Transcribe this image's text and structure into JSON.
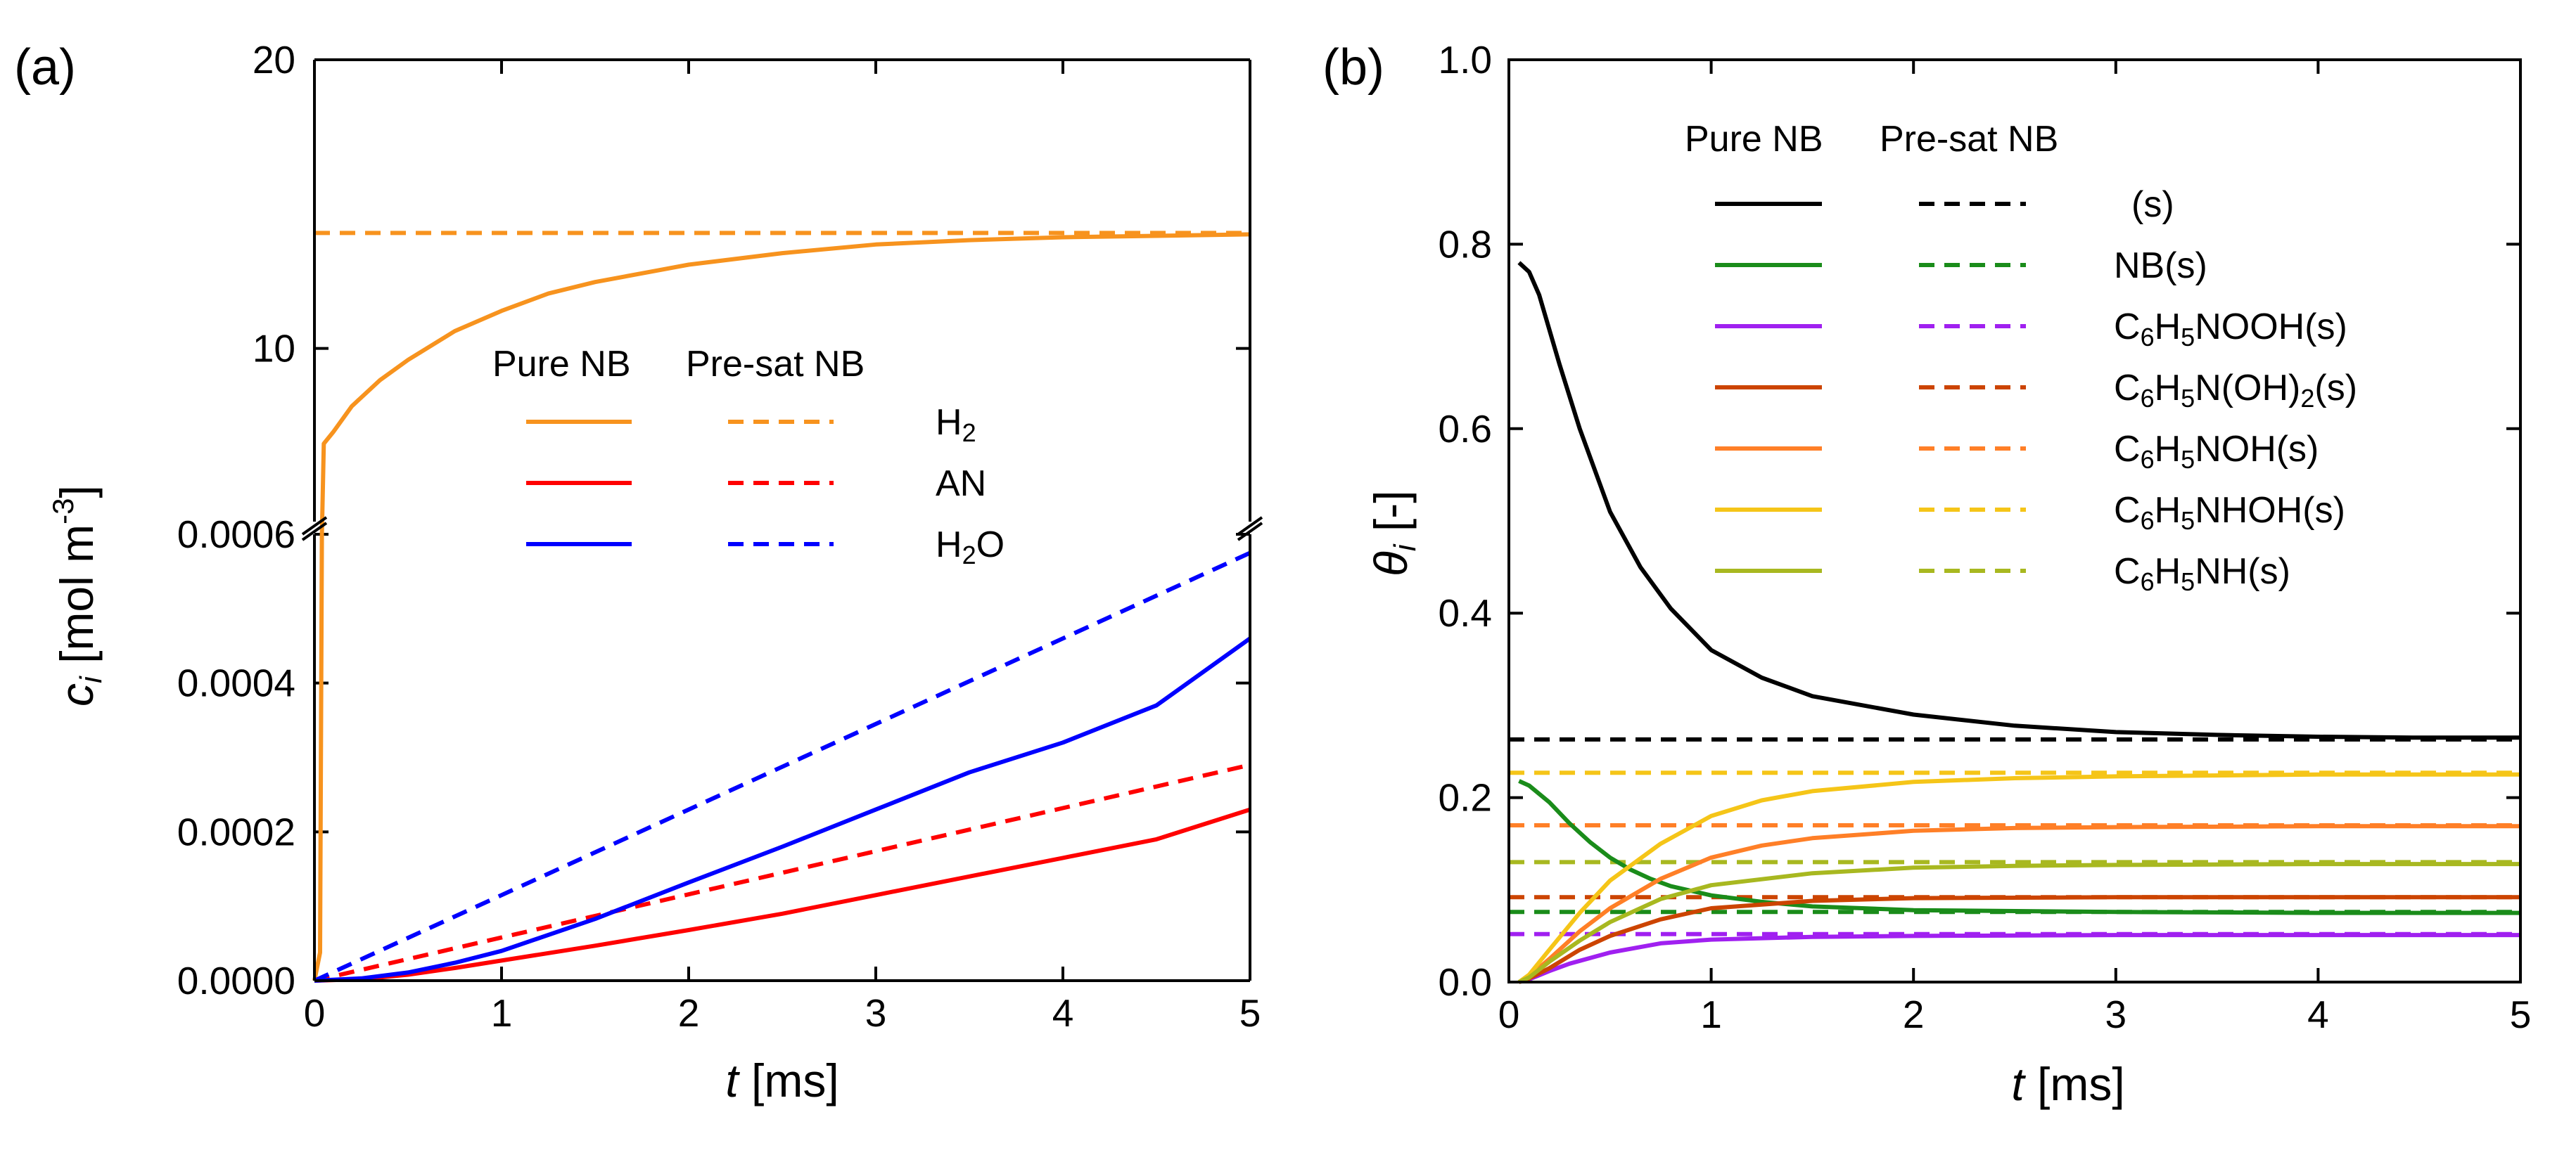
{
  "chart_data": [
    {
      "type": "line",
      "panel_label": "(a)",
      "ylabel_main": "c",
      "ylabel_sub": "i",
      "ylabel_unit": " [mol m",
      "ylabel_exp": "-3",
      "ylabel_close": "]",
      "xlabel_main": "t",
      "xlabel_unit": " [ms]",
      "xlim": [
        0,
        5
      ],
      "x_ticks": [
        "0",
        "1",
        "2",
        "3",
        "4",
        "5"
      ],
      "broken_y_axis": true,
      "ylim_lower": [
        0,
        0.0006
      ],
      "ylim_upper": [
        4,
        20
      ],
      "y_ticks_lower": [
        "0.0000",
        "0.0002",
        "0.0004",
        "0.0006"
      ],
      "y_ticks_upper": [
        "10",
        "20"
      ],
      "legend": {
        "header_pure": "Pure NB",
        "header_presat": "Pre-sat NB",
        "entries": [
          {
            "base": "H",
            "sub": "2",
            "tail": ""
          },
          {
            "base": "AN",
            "sub": "",
            "tail": ""
          },
          {
            "base": "H",
            "sub": "2",
            "tail": "O"
          }
        ]
      },
      "series": [
        {
          "name": "H2 Pure NB",
          "color": "#f7931e",
          "style": "solid",
          "segment": "upper",
          "x": [
            0.05,
            0.1,
            0.2,
            0.35,
            0.5,
            0.75,
            1.0,
            1.25,
            1.5,
            2.0,
            2.5,
            3.0,
            3.5,
            4.0,
            4.5,
            5.0
          ],
          "y": [
            6.7,
            7.1,
            8.0,
            8.9,
            9.6,
            10.6,
            11.3,
            11.9,
            12.3,
            12.9,
            13.3,
            13.6,
            13.75,
            13.85,
            13.9,
            13.95
          ]
        },
        {
          "name": "H2 Pre-sat NB",
          "color": "#f7931e",
          "style": "dashed",
          "segment": "upper",
          "x": [
            0,
            5
          ],
          "y": [
            14.0,
            14.0
          ]
        },
        {
          "name": "AN Pure NB",
          "color": "#ff0000",
          "style": "solid",
          "segment": "lower",
          "x": [
            0,
            0.25,
            0.5,
            0.75,
            1.0,
            1.5,
            2.0,
            2.5,
            3.0,
            3.5,
            4.0,
            4.5,
            5.0
          ],
          "y": [
            0,
            2e-06,
            8e-06,
            1.7e-05,
            2.7e-05,
            4.7e-05,
            6.8e-05,
            9e-05,
            0.000115,
            0.00014,
            0.000165,
            0.00019,
            0.00023
          ]
        },
        {
          "name": "AN Pre-sat NB",
          "color": "#ff0000",
          "style": "dashed",
          "segment": "lower",
          "x": [
            0,
            1,
            2,
            3,
            4,
            5
          ],
          "y": [
            0,
            5.8e-05,
            0.000116,
            0.000174,
            0.000232,
            0.00029
          ]
        },
        {
          "name": "H2O Pure NB",
          "color": "#0000ff",
          "style": "solid",
          "segment": "lower",
          "x": [
            0,
            0.25,
            0.5,
            0.75,
            1.0,
            1.5,
            2.0,
            2.5,
            3.0,
            3.5,
            4.0,
            4.5,
            5.0
          ],
          "y": [
            0,
            3e-06,
            1.1e-05,
            2.4e-05,
            4e-05,
            8.3e-05,
            0.000132,
            0.00018,
            0.00023,
            0.00028,
            0.00032,
            0.00037,
            0.00046
          ]
        },
        {
          "name": "H2O Pre-sat NB",
          "color": "#0000ff",
          "style": "dashed",
          "segment": "lower",
          "x": [
            0,
            1,
            2,
            3,
            4,
            5
          ],
          "y": [
            0,
            0.000115,
            0.00023,
            0.000345,
            0.00046,
            0.000575
          ]
        }
      ]
    },
    {
      "type": "line",
      "panel_label": "(b)",
      "ylabel_main": "θ",
      "ylabel_sub": "i",
      "ylabel_unit": " [-]",
      "xlabel_main": "t",
      "xlabel_unit": " [ms]",
      "xlim": [
        0,
        5
      ],
      "ylim": [
        0,
        1.0
      ],
      "x_ticks": [
        "0",
        "1",
        "2",
        "3",
        "4",
        "5"
      ],
      "y_ticks": [
        "0.0",
        "0.2",
        "0.4",
        "0.6",
        "0.8",
        "1.0"
      ],
      "legend": {
        "header_pure": "Pure NB",
        "header_presat": "Pre-sat NB",
        "entries": [
          {
            "parts": [
              "(s)"
            ]
          },
          {
            "parts": [
              "NB(s)"
            ]
          },
          {
            "parts": [
              "C",
              "6",
              "H",
              "5",
              "NOOH(s)"
            ]
          },
          {
            "parts": [
              "C",
              "6",
              "H",
              "5",
              "N(OH)",
              "2",
              "(s)"
            ]
          },
          {
            "parts": [
              "C",
              "6",
              "H",
              "5",
              "NOH(s)"
            ]
          },
          {
            "parts": [
              "C",
              "6",
              "H",
              "5",
              "NHOH(s)"
            ]
          },
          {
            "parts": [
              "C",
              "6",
              "H",
              "5",
              "NH(s)"
            ]
          }
        ]
      },
      "series": [
        {
          "name": "(s) Pure NB",
          "color": "#000000",
          "style": "solid",
          "x": [
            0.05,
            0.1,
            0.15,
            0.25,
            0.35,
            0.5,
            0.65,
            0.8,
            1.0,
            1.25,
            1.5,
            2.0,
            2.5,
            3.0,
            3.5,
            4.0,
            4.5,
            5.0
          ],
          "y": [
            0.78,
            0.77,
            0.745,
            0.67,
            0.6,
            0.51,
            0.45,
            0.405,
            0.36,
            0.33,
            0.31,
            0.29,
            0.278,
            0.271,
            0.268,
            0.266,
            0.265,
            0.265
          ]
        },
        {
          "name": "(s) Pre-sat NB",
          "color": "#000000",
          "style": "dashed",
          "x": [
            0,
            5
          ],
          "y": [
            0.263,
            0.263
          ]
        },
        {
          "name": "NB(s) Pure NB",
          "color": "#1a8c1a",
          "style": "solid",
          "x": [
            0.05,
            0.1,
            0.2,
            0.3,
            0.4,
            0.5,
            0.6,
            0.7,
            0.8,
            1.0,
            1.25,
            1.5,
            2.0,
            3.0,
            4.0,
            5.0
          ],
          "y": [
            0.218,
            0.213,
            0.195,
            0.172,
            0.152,
            0.135,
            0.122,
            0.112,
            0.104,
            0.094,
            0.087,
            0.082,
            0.078,
            0.076,
            0.075,
            0.075
          ]
        },
        {
          "name": "NB(s) Pre-sat NB",
          "color": "#1a8c1a",
          "style": "dashed",
          "x": [
            0,
            5
          ],
          "y": [
            0.076,
            0.076
          ]
        },
        {
          "name": "C6H5NOOH(s) Pure NB",
          "color": "#a020f0",
          "style": "solid",
          "x": [
            0.05,
            0.1,
            0.2,
            0.3,
            0.5,
            0.75,
            1.0,
            1.5,
            2.0,
            3.0,
            4.0,
            5.0
          ],
          "y": [
            0.0,
            0.003,
            0.012,
            0.02,
            0.032,
            0.042,
            0.046,
            0.049,
            0.05,
            0.051,
            0.051,
            0.051
          ]
        },
        {
          "name": "C6H5NOOH(s) Pre-sat NB",
          "color": "#a020f0",
          "style": "dashed",
          "x": [
            0,
            5
          ],
          "y": [
            0.052,
            0.052
          ]
        },
        {
          "name": "C6H5N(OH)2(s) Pure NB",
          "color": "#cc4400",
          "style": "solid",
          "x": [
            0.05,
            0.1,
            0.2,
            0.35,
            0.5,
            0.75,
            1.0,
            1.5,
            2.0,
            3.0,
            4.0,
            5.0
          ],
          "y": [
            0.0,
            0.004,
            0.015,
            0.035,
            0.05,
            0.068,
            0.08,
            0.088,
            0.091,
            0.092,
            0.092,
            0.092
          ]
        },
        {
          "name": "C6H5N(OH)2(s) Pre-sat NB",
          "color": "#cc4400",
          "style": "dashed",
          "x": [
            0,
            5
          ],
          "y": [
            0.092,
            0.092
          ]
        },
        {
          "name": "C6H5NOH(s) Pure NB",
          "color": "#ff7f27",
          "style": "solid",
          "x": [
            0.05,
            0.1,
            0.2,
            0.35,
            0.5,
            0.75,
            1.0,
            1.25,
            1.5,
            2.0,
            2.5,
            3.0,
            4.0,
            5.0
          ],
          "y": [
            0.0,
            0.006,
            0.025,
            0.055,
            0.08,
            0.112,
            0.135,
            0.148,
            0.156,
            0.164,
            0.167,
            0.168,
            0.169,
            0.169
          ]
        },
        {
          "name": "C6H5NOH(s) Pre-sat NB",
          "color": "#ff7f27",
          "style": "dashed",
          "x": [
            0,
            5
          ],
          "y": [
            0.17,
            0.17
          ]
        },
        {
          "name": "C6H5NHOH(s) Pure NB",
          "color": "#f5c518",
          "style": "solid",
          "x": [
            0.05,
            0.1,
            0.2,
            0.35,
            0.5,
            0.75,
            1.0,
            1.25,
            1.5,
            2.0,
            2.5,
            3.0,
            4.0,
            5.0
          ],
          "y": [
            0.0,
            0.008,
            0.035,
            0.075,
            0.11,
            0.15,
            0.18,
            0.197,
            0.207,
            0.217,
            0.221,
            0.223,
            0.225,
            0.225
          ]
        },
        {
          "name": "C6H5NHOH(s) Pre-sat NB",
          "color": "#f5c518",
          "style": "dashed",
          "x": [
            0,
            5
          ],
          "y": [
            0.227,
            0.227
          ]
        },
        {
          "name": "C6H5NH(s) Pure NB",
          "color": "#a8b820",
          "style": "solid",
          "x": [
            0.05,
            0.1,
            0.2,
            0.35,
            0.5,
            0.75,
            1.0,
            1.5,
            2.0,
            2.5,
            3.0,
            4.0,
            5.0
          ],
          "y": [
            0.0,
            0.005,
            0.022,
            0.045,
            0.065,
            0.09,
            0.105,
            0.118,
            0.124,
            0.126,
            0.127,
            0.128,
            0.128
          ]
        },
        {
          "name": "C6H5NH(s) Pre-sat NB",
          "color": "#a8b820",
          "style": "dashed",
          "x": [
            0,
            5
          ],
          "y": [
            0.13,
            0.13
          ]
        }
      ]
    }
  ]
}
